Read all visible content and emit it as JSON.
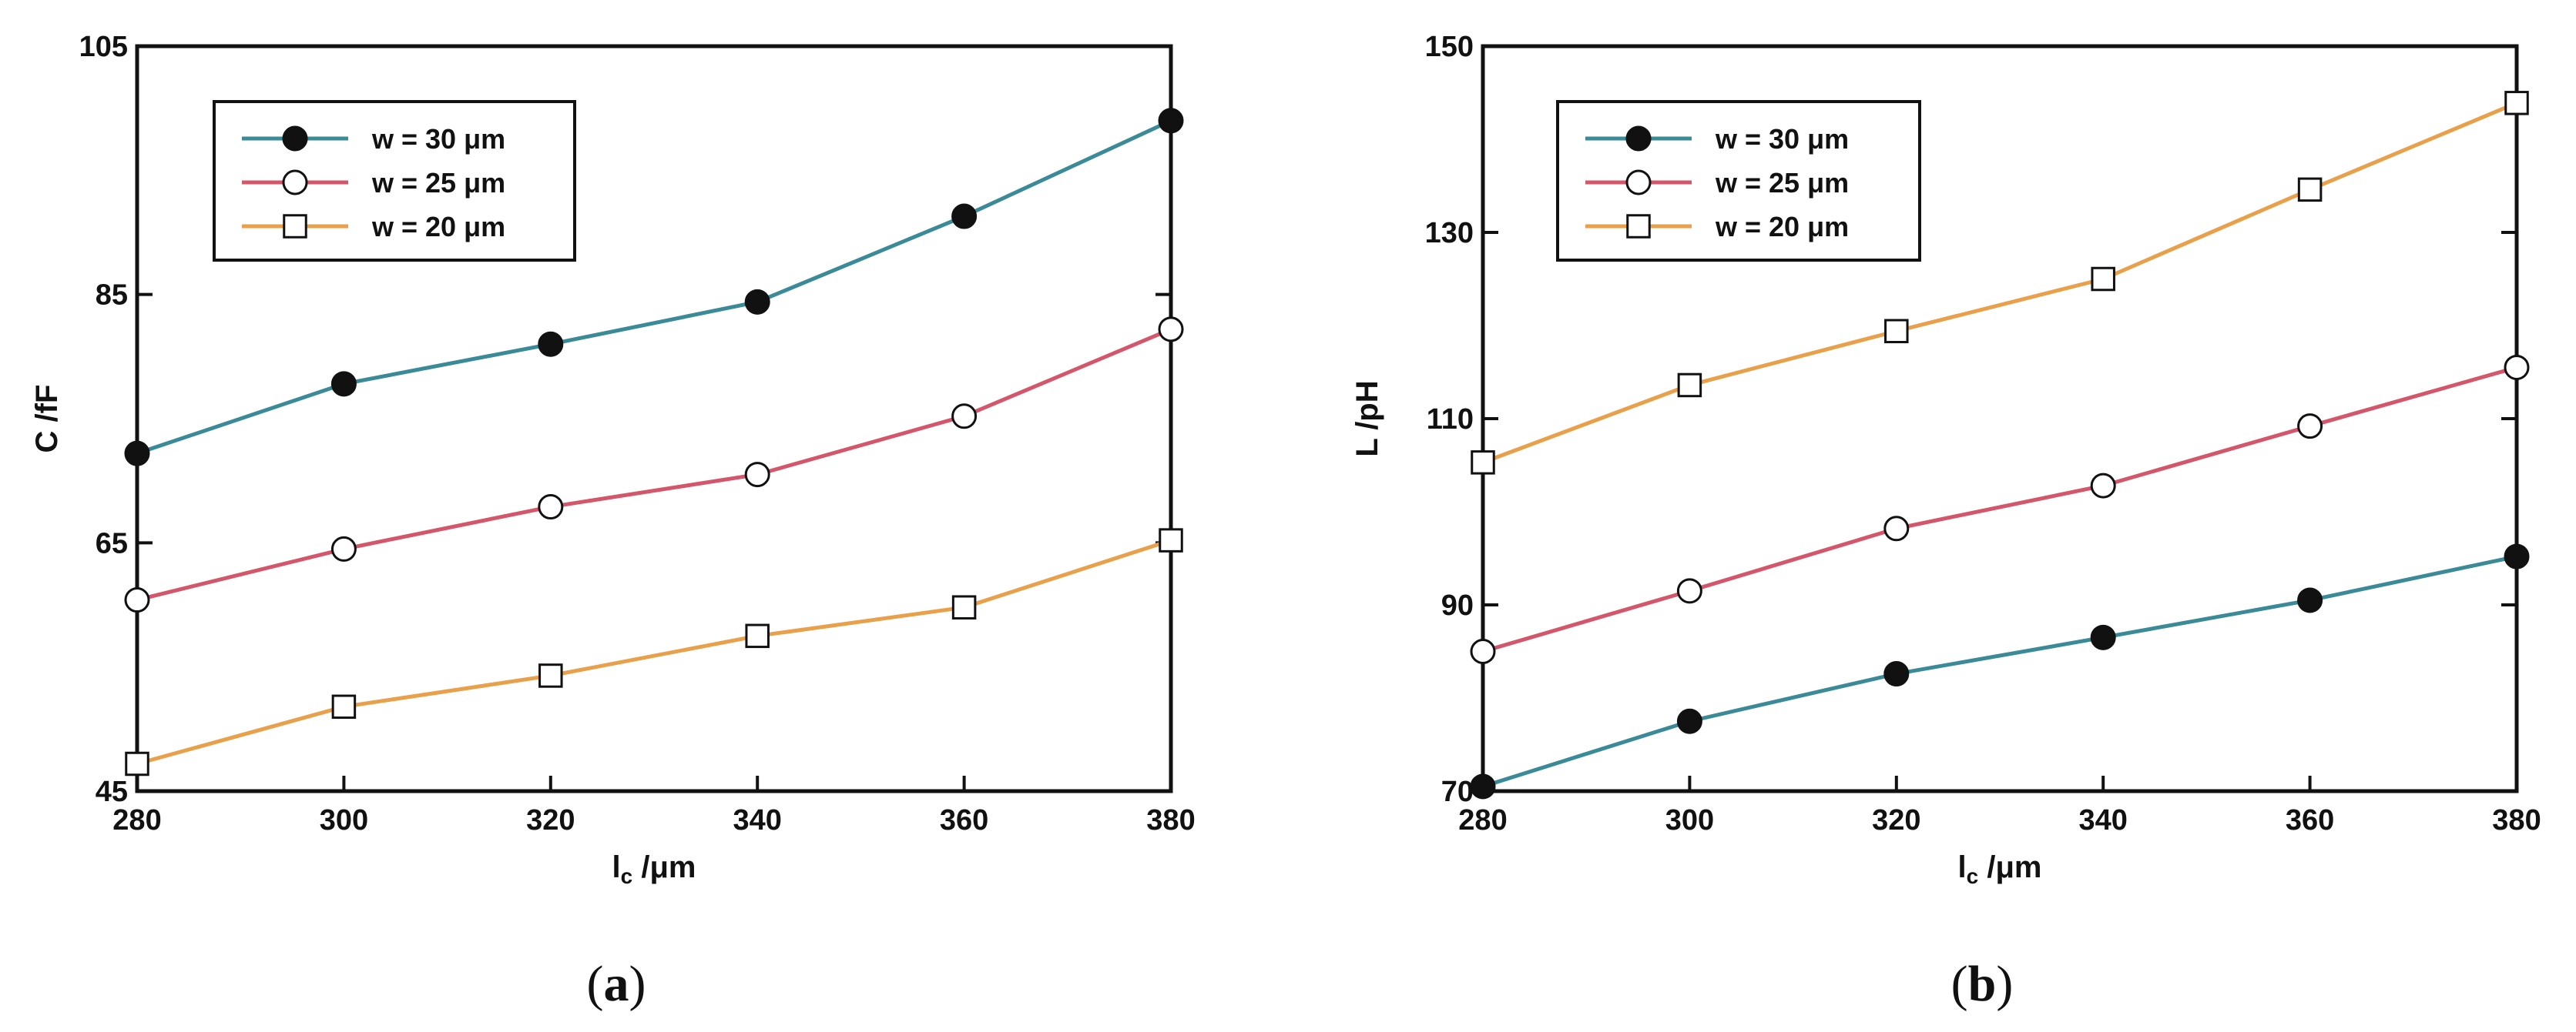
{
  "chart_data": [
    {
      "type": "line",
      "panel_label": "(a)",
      "panel_letter": "a",
      "xlabel": "l",
      "xlabel_sub": "c",
      "xlabel_unit": " /μm",
      "ylabel": "C /fF",
      "xlim": [
        280,
        380
      ],
      "ylim": [
        45,
        105
      ],
      "xticks": [
        "280",
        "300",
        "320",
        "340",
        "360",
        "380"
      ],
      "yticks": [
        "45",
        "65",
        "85",
        "105"
      ],
      "x": [
        280,
        300,
        320,
        340,
        360,
        380
      ],
      "legend_position": "top-left",
      "series": [
        {
          "name": "w = 30 μm",
          "marker": "filled-circle",
          "color": "#3a8a98",
          "values": [
            72.2,
            77.8,
            81.0,
            84.4,
            91.3,
            99.0
          ]
        },
        {
          "name": "w = 25 μm",
          "marker": "open-circle",
          "color": "#d4566b",
          "values": [
            60.4,
            64.5,
            67.9,
            70.5,
            75.2,
            82.2
          ]
        },
        {
          "name": "w = 20 μm",
          "marker": "open-square",
          "color": "#e8a04a",
          "values": [
            47.2,
            51.8,
            54.3,
            57.5,
            59.8,
            65.2
          ]
        }
      ]
    },
    {
      "type": "line",
      "panel_label": "(b)",
      "panel_letter": "b",
      "xlabel": "l",
      "xlabel_sub": "c",
      "xlabel_unit": " /μm",
      "ylabel": "L /pH",
      "xlim": [
        280,
        380
      ],
      "ylim": [
        70,
        150
      ],
      "xticks": [
        "280",
        "300",
        "320",
        "340",
        "360",
        "380"
      ],
      "yticks": [
        "70",
        "90",
        "110",
        "130",
        "150"
      ],
      "x": [
        280,
        300,
        320,
        340,
        360,
        380
      ],
      "legend_position": "top-left",
      "series": [
        {
          "name": "w = 30 μm",
          "marker": "filled-circle",
          "color": "#3a8a98",
          "values": [
            70.5,
            77.5,
            82.6,
            86.5,
            90.5,
            95.2
          ]
        },
        {
          "name": "w = 25 μm",
          "marker": "open-circle",
          "color": "#d4566b",
          "values": [
            85.0,
            91.5,
            98.2,
            102.8,
            109.2,
            115.5
          ]
        },
        {
          "name": "w = 20 μm",
          "marker": "open-square",
          "color": "#e8a04a",
          "values": [
            105.3,
            113.6,
            119.4,
            125.0,
            134.6,
            143.9
          ]
        }
      ]
    }
  ]
}
